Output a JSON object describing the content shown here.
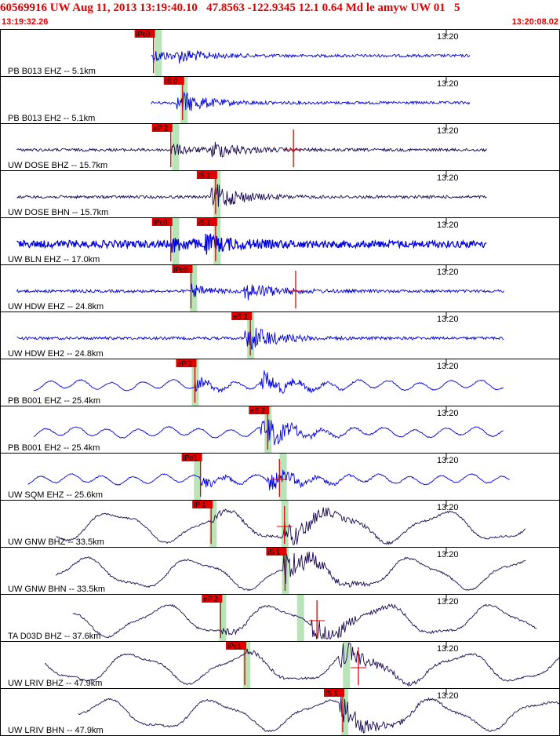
{
  "header": {
    "title": "60569916 UW Aug 11, 2013 13:19:40.10   47.8563 -122.9345 12.1 0.64 Md le amyw UW 01   5",
    "start_time": "13:19:32.26",
    "end_time": "13:20:08.02"
  },
  "time_tick_label": "13:20",
  "colors": {
    "title": "#e00000",
    "trace_blue": "#0000e0",
    "trace_dark": "#1a0850",
    "pick": "#e00000",
    "pick_band": "#b8e4b8",
    "panel_border": "#000000"
  },
  "traces": [
    {
      "label": "PB B013 EHZ -- 5.1km",
      "color": "blue",
      "start": 0.27,
      "end": 0.84,
      "arrival": 0.33,
      "amp": 0.3,
      "mode": "noise",
      "picks": [
        {
          "label": "iPc0",
          "t": 0.274,
          "band": 0.282
        }
      ]
    },
    {
      "label": "PB B013 EH2 -- 5.1km",
      "color": "blue",
      "start": 0.27,
      "end": 0.84,
      "arrival": 0.33,
      "amp": 0.3,
      "mode": "noise",
      "picks": [
        {
          "label": "iS 0",
          "t": 0.326,
          "band": 0.328
        }
      ]
    },
    {
      "label": "UW DOSE BHZ -- 15.7km",
      "color": "dark",
      "start": 0.03,
      "end": 0.87,
      "arrival": 0.39,
      "amp": 0.45,
      "mode": "noise",
      "picks": [
        {
          "label": "eP 2",
          "t": 0.305,
          "band": 0.313
        },
        {
          "label": "",
          "t": 0.524,
          "band": null
        }
      ]
    },
    {
      "label": "UW DOSE BHN -- 15.7km",
      "color": "dark",
      "start": 0.03,
      "end": 0.87,
      "arrival": 0.39,
      "amp": 0.45,
      "mode": "noise",
      "picks": [
        {
          "label": "iS 1",
          "t": 0.385,
          "band": 0.387
        }
      ]
    },
    {
      "label": "UW BLN EHZ -- 17.0km",
      "color": "blue",
      "start": 0.03,
      "end": 0.87,
      "arrival": 0.38,
      "amp": 0.35,
      "mode": "thick",
      "picks": [
        {
          "label": "iPc0",
          "t": 0.305,
          "band": 0.313
        },
        {
          "label": "iS 1",
          "t": 0.385,
          "band": 0.387
        }
      ]
    },
    {
      "label": "UW HDW EHZ -- 24.8km",
      "color": "blue",
      "start": 0.03,
      "end": 0.9,
      "arrival": 0.45,
      "amp": 0.45,
      "mode": "noise",
      "picks": [
        {
          "label": "iPc0",
          "t": 0.341,
          "band": 0.345
        },
        {
          "label": "",
          "t": 0.528,
          "band": null
        }
      ]
    },
    {
      "label": "UW HDW EH2 -- 24.8km",
      "color": "blue",
      "start": 0.03,
      "end": 0.9,
      "arrival": 0.45,
      "amp": 0.45,
      "mode": "noise",
      "picks": [
        {
          "label": "eS 2",
          "t": 0.447,
          "band": 0.447
        }
      ]
    },
    {
      "label": "PB B001 EHZ -- 25.4km",
      "color": "blue",
      "start": 0.06,
      "end": 0.9,
      "arrival": 0.48,
      "amp": 0.55,
      "mode": "wavy",
      "picks": [
        {
          "label": "eP 2",
          "t": 0.348,
          "band": 0.348
        }
      ]
    },
    {
      "label": "PB B001 EH2 -- 25.4km",
      "color": "blue",
      "start": 0.06,
      "end": 0.9,
      "arrival": 0.48,
      "amp": 0.55,
      "mode": "wavy",
      "picks": [
        {
          "label": "eS 2",
          "t": 0.478,
          "band": 0.478
        }
      ]
    },
    {
      "label": "UW SQM EHZ -- 25.6km",
      "color": "blue",
      "start": 0.05,
      "end": 0.91,
      "arrival": 0.49,
      "amp": 0.55,
      "mode": "wavy",
      "picks": [
        {
          "label": "iPd1",
          "t": 0.358,
          "band": 0.352
        },
        {
          "label": "",
          "t": 0.499,
          "band": 0.505
        }
      ]
    },
    {
      "label": "UW GNW BHZ -- 33.5km",
      "color": "dark",
      "start": 0.1,
      "end": 0.94,
      "arrival": 0.52,
      "amp": 0.85,
      "mode": "swell",
      "picks": [
        {
          "label": "iP 1",
          "t": 0.377,
          "band": 0.38
        },
        {
          "label": "",
          "t": 0.508,
          "band": 0.508
        }
      ]
    },
    {
      "label": "UW GNW BHN -- 33.5km",
      "color": "dark",
      "start": 0.1,
      "end": 0.94,
      "arrival": 0.52,
      "amp": 0.85,
      "mode": "swell",
      "picks": [
        {
          "label": "iS 1",
          "t": 0.509,
          "band": 0.509
        }
      ]
    },
    {
      "label": "TA D03D BHZ -- 37.6km",
      "color": "dark",
      "start": 0.13,
      "end": 0.96,
      "arrival": 0.57,
      "amp": 0.85,
      "mode": "swell",
      "picks": [
        {
          "label": "eP 2",
          "t": 0.394,
          "band": 0.397
        },
        {
          "label": "",
          "t": 0.566,
          "band": 0.536
        }
      ]
    },
    {
      "label": "UW LRIV BHZ -- 47.9km",
      "color": "dark",
      "start": 0.08,
      "end": 1.0,
      "arrival": 0.62,
      "amp": 0.7,
      "mode": "swell",
      "picks": [
        {
          "label": "iPc1",
          "t": 0.437,
          "band": 0.44
        },
        {
          "label": "",
          "t": 0.64,
          "band": 0.618
        }
      ]
    },
    {
      "label": "UW LRIV BHN -- 47.9km",
      "color": "dark",
      "start": 0.14,
      "end": 1.0,
      "arrival": 0.62,
      "amp": 0.7,
      "mode": "swell",
      "picks": [
        {
          "label": "iS 1",
          "t": 0.612,
          "band": 0.615
        }
      ]
    }
  ]
}
